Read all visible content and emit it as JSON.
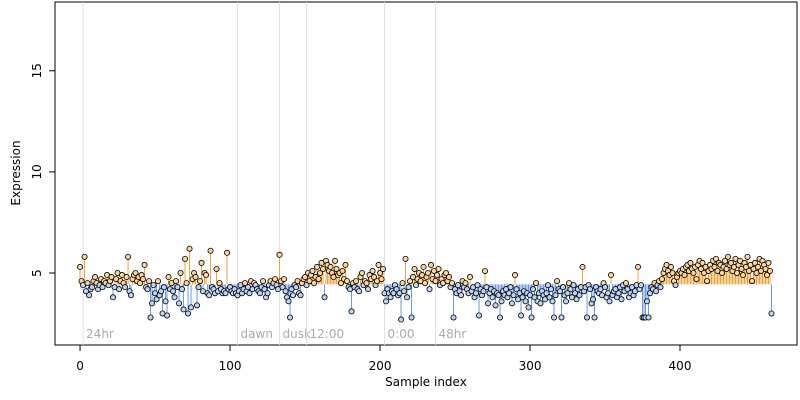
{
  "chart_data": {
    "type": "lollipop",
    "xlabel": "Sample index",
    "ylabel": "Expression",
    "xlim": [
      -16.7,
      478
    ],
    "ylim": [
      1.44,
      18.4
    ],
    "xticks": [
      0,
      100,
      200,
      300,
      400
    ],
    "yticks": [
      5,
      10,
      15
    ],
    "above_color": "#e8a33b",
    "above_fill": "#fdd49a",
    "below_color": "#6a98e0",
    "below_fill": "#bcd4f5",
    "annotations": [
      {
        "x": 2,
        "label": "24hr"
      },
      {
        "x": 105,
        "label": "dawn"
      },
      {
        "x": 133,
        "label": "dusk"
      },
      {
        "x": 151,
        "label": "12:00"
      },
      {
        "x": 203,
        "label": "0:00"
      },
      {
        "x": 237,
        "label": "48hr"
      }
    ],
    "values": [
      5.3,
      4.6,
      4.4,
      5.8,
      4.1,
      4.5,
      3.9,
      4.2,
      4.3,
      4.6,
      4.8,
      4.5,
      4.2,
      4.4,
      4.7,
      4.3,
      4.6,
      4.5,
      4.9,
      4.4,
      4.6,
      4.8,
      3.8,
      4.3,
      4.7,
      5.0,
      4.2,
      4.6,
      4.9,
      4.5,
      4.3,
      4.8,
      5.8,
      4.1,
      3.9,
      4.7,
      4.9,
      5.0,
      4.6,
      4.8,
      4.5,
      4.9,
      4.7,
      5.4,
      4.3,
      4.2,
      4.6,
      2.8,
      3.5,
      4.4,
      4.0,
      3.7,
      4.6,
      3.9,
      4.1,
      3.0,
      4.3,
      3.6,
      2.9,
      4.8,
      4.2,
      4.5,
      4.1,
      3.8,
      4.6,
      4.3,
      3.5,
      5.0,
      4.2,
      3.2,
      5.7,
      4.5,
      3.0,
      6.2,
      3.3,
      4.7,
      5.0,
      4.8,
      3.4,
      4.3,
      4.6,
      5.5,
      4.1,
      5.0,
      4.9,
      4.0,
      3.9,
      6.1,
      4.3,
      4.2,
      4.0,
      5.2,
      4.1,
      4.5,
      4.2,
      4.0,
      4.1,
      4.0,
      6.0,
      4.2,
      4.3,
      4.1,
      4.0,
      4.2,
      4.0,
      3.9,
      4.1,
      4.4,
      4.0,
      4.2,
      4.5,
      4.1,
      4.3,
      4.0,
      4.6,
      4.2,
      4.5,
      4.4,
      4.2,
      4.1,
      4.0,
      4.3,
      4.6,
      4.2,
      3.8,
      4.0,
      4.4,
      4.6,
      4.3,
      4.5,
      4.7,
      4.4,
      4.2,
      5.9,
      4.6,
      4.3,
      4.7,
      4.1,
      3.8,
      3.6,
      2.8,
      4.2,
      3.9,
      4.4,
      4.3,
      4.6,
      4.0,
      3.9,
      4.5,
      4.7,
      4.8,
      4.4,
      5.0,
      4.6,
      4.9,
      5.1,
      4.5,
      4.8,
      5.3,
      4.7,
      5.0,
      5.5,
      5.2,
      3.8,
      5.6,
      5.4,
      5.1,
      5.3,
      5.0,
      4.8,
      5.6,
      5.2,
      4.9,
      5.0,
      4.5,
      5.1,
      4.7,
      5.4,
      4.6,
      4.3,
      4.2,
      3.1,
      4.5,
      4.3,
      4.6,
      4.2,
      4.1,
      4.8,
      5.0,
      4.4,
      4.6,
      4.5,
      4.2,
      4.9,
      4.7,
      5.1,
      4.8,
      4.4,
      4.6,
      5.4,
      5.0,
      4.7,
      5.2,
      4.0,
      3.6,
      4.2,
      4.0,
      3.8,
      4.1,
      4.0,
      4.4,
      4.2,
      3.9,
      4.0,
      2.7,
      4.5,
      4.1,
      5.7,
      3.8,
      4.3,
      4.6,
      2.8,
      4.8,
      5.2,
      4.4,
      4.7,
      5.0,
      4.6,
      4.9,
      5.3,
      4.5,
      4.8,
      5.0,
      4.2,
      5.4,
      4.7,
      5.1,
      4.6,
      4.9,
      5.2,
      4.4,
      4.7,
      4.5,
      4.9,
      5.0,
      4.6,
      4.8,
      4.3,
      4.5,
      2.8,
      4.2,
      4.0,
      4.4,
      4.1,
      3.9,
      4.6,
      4.3,
      4.5,
      4.2,
      4.0,
      4.8,
      4.1,
      4.3,
      3.8,
      4.0,
      4.4,
      2.9,
      4.2,
      3.9,
      4.1,
      5.1,
      4.3,
      3.5,
      4.0,
      4.2,
      3.8,
      4.1,
      3.4,
      4.0,
      3.9,
      2.8,
      3.6,
      4.1,
      3.9,
      4.2,
      3.8,
      4.0,
      4.3,
      3.5,
      3.9,
      4.9,
      4.2,
      3.7,
      4.0,
      2.9,
      3.8,
      4.1,
      3.6,
      4.0,
      3.3,
      3.9,
      2.8,
      4.2,
      3.8,
      4.5,
      3.6,
      4.0,
      3.5,
      4.1,
      3.9,
      3.7,
      4.0,
      4.4,
      3.8,
      4.2,
      3.6,
      2.8,
      3.9,
      4.6,
      4.2,
      4.1,
      2.8,
      4.3,
      3.9,
      3.6,
      4.0,
      4.5,
      4.2,
      3.8,
      4.4,
      4.0,
      3.7,
      4.2,
      3.9,
      4.3,
      5.3,
      4.1,
      4.3,
      2.8,
      4.4,
      4.2,
      3.5,
      3.7,
      2.8,
      4.3,
      4.1,
      4.0,
      4.2,
      3.9,
      4.5,
      4.3,
      3.8,
      4.0,
      3.6,
      4.9,
      3.9,
      4.1,
      4.2,
      3.8,
      4.0,
      4.3,
      3.7,
      4.4,
      4.1,
      4.5,
      4.2,
      3.8,
      4.0,
      4.3,
      3.9,
      4.1,
      4.4,
      5.3,
      4.2,
      4.4,
      2.8,
      2.8,
      2.8,
      3.6,
      2.8,
      4.0,
      4.3,
      4.2,
      4.5,
      4.1,
      4.4,
      4.6,
      4.3,
      4.7,
      5.0,
      5.2,
      5.4,
      5.1,
      4.9,
      5.3,
      5.0,
      4.6,
      4.4,
      4.8,
      5.0,
      5.1,
      5.0,
      5.2,
      4.9,
      5.3,
      5.4,
      5.1,
      5.5,
      5.2,
      5.0,
      5.3,
      4.7,
      5.4,
      5.6,
      5.2,
      5.5,
      5.0,
      5.3,
      4.6,
      5.1,
      5.4,
      5.2,
      5.6,
      5.3,
      5.7,
      5.1,
      5.5,
      5.4,
      5.0,
      5.3,
      5.6,
      5.2,
      5.8,
      5.4,
      5.5,
      5.1,
      5.3,
      5.7,
      5.0,
      5.4,
      5.6,
      5.2,
      4.9,
      5.5,
      5.3,
      5.8,
      5.1,
      5.4,
      4.6,
      5.2,
      5.5,
      5.0,
      5.3,
      5.7,
      5.1,
      5.6,
      5.4,
      5.2,
      4.9,
      5.5,
      5.1,
      3.0
    ]
  }
}
